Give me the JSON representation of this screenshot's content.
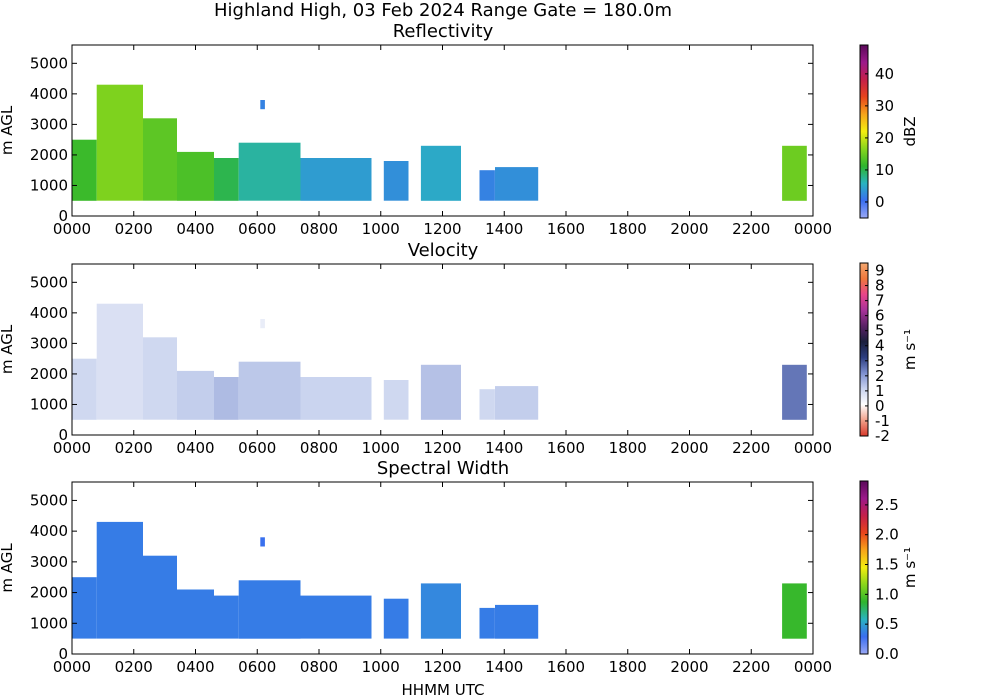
{
  "figure": {
    "title": "Highland High, 03 Feb 2024 Range Gate = 180.0m",
    "xlabel": "HHMM UTC"
  },
  "chart_data": [
    {
      "type": "heatmap",
      "title": "Reflectivity",
      "ylabel": "m AGL",
      "x_unit": "UTC hour",
      "xlim": [
        0,
        24
      ],
      "ylim": [
        0,
        5600
      ],
      "x_ticks": [
        0,
        2,
        4,
        6,
        8,
        10,
        12,
        14,
        16,
        18,
        20,
        22,
        24
      ],
      "x_tick_labels": [
        "0000",
        "0200",
        "0400",
        "0600",
        "0800",
        "1000",
        "1200",
        "1400",
        "1600",
        "1800",
        "2000",
        "2200",
        "0000"
      ],
      "y_ticks": [
        0,
        1000,
        2000,
        3000,
        4000,
        5000
      ],
      "y_tick_labels": [
        "0",
        "1000",
        "2000",
        "3000",
        "4000",
        "5000"
      ],
      "colorbar": {
        "label": "dBZ",
        "range": [
          -5,
          49
        ],
        "ticks": [
          0,
          10,
          20,
          30,
          40
        ],
        "tick_labels": [
          "0",
          "10",
          "20",
          "30",
          "40"
        ],
        "colors": [
          "#9aa8f5",
          "#3a6ef0",
          "#29b3c0",
          "#2eb52e",
          "#88d61c",
          "#f4ee10",
          "#f7a41a",
          "#e8441c",
          "#c4204a",
          "#9c1a8a",
          "#5a0a5a"
        ]
      },
      "echo_segments": [
        {
          "start": 0.0,
          "end": 0.8,
          "top": 2500,
          "value": 12
        },
        {
          "start": 0.8,
          "end": 2.3,
          "top": 4300,
          "value": 16
        },
        {
          "start": 2.3,
          "end": 3.4,
          "top": 3200,
          "value": 14
        },
        {
          "start": 3.4,
          "end": 4.6,
          "top": 2100,
          "value": 13
        },
        {
          "start": 4.6,
          "end": 5.4,
          "top": 1900,
          "value": 10
        },
        {
          "start": 5.4,
          "end": 7.4,
          "top": 2400,
          "value": 7
        },
        {
          "start": 7.4,
          "end": 9.7,
          "top": 1900,
          "value": 4
        },
        {
          "start": 10.1,
          "end": 10.9,
          "top": 1800,
          "value": 3
        },
        {
          "start": 11.3,
          "end": 12.6,
          "top": 2300,
          "value": 5
        },
        {
          "start": 13.2,
          "end": 13.7,
          "top": 1500,
          "value": 2
        },
        {
          "start": 13.7,
          "end": 15.1,
          "top": 1600,
          "value": 3
        },
        {
          "start": 23.0,
          "end": 23.8,
          "top": 2300,
          "value": 15
        }
      ],
      "small_patches": [
        {
          "start": 6.1,
          "end": 6.25,
          "bottom": 3500,
          "top": 3800,
          "value": 2
        }
      ]
    },
    {
      "type": "heatmap",
      "title": "Velocity",
      "ylabel": "m AGL",
      "x_unit": "UTC hour",
      "xlim": [
        0,
        24
      ],
      "ylim": [
        0,
        5600
      ],
      "x_ticks": [
        0,
        2,
        4,
        6,
        8,
        10,
        12,
        14,
        16,
        18,
        20,
        22,
        24
      ],
      "x_tick_labels": [
        "0000",
        "0200",
        "0400",
        "0600",
        "0800",
        "1000",
        "1200",
        "1400",
        "1600",
        "1800",
        "2000",
        "2200",
        "0000"
      ],
      "y_ticks": [
        0,
        1000,
        2000,
        3000,
        4000,
        5000
      ],
      "y_tick_labels": [
        "0",
        "1000",
        "2000",
        "3000",
        "4000",
        "5000"
      ],
      "colorbar": {
        "label": "m s⁻¹",
        "range": [
          -2,
          9.5
        ],
        "ticks": [
          -2,
          -1,
          0,
          1,
          2,
          3,
          4,
          5,
          6,
          7,
          8,
          9
        ],
        "tick_labels": [
          "-2",
          "-1",
          "0",
          "1",
          "2",
          "3",
          "4",
          "5",
          "6",
          "7",
          "8",
          "9"
        ],
        "colors": [
          "#d8392b",
          "#f0a08a",
          "#ffffff",
          "#c8d2ee",
          "#7d8fcf",
          "#2c3d80",
          "#1a1f3c",
          "#5b2266",
          "#a8339a",
          "#e8458a",
          "#f0783c",
          "#f4a870"
        ]
      },
      "echo_segments": [
        {
          "start": 0.0,
          "end": 0.8,
          "top": 2500,
          "value": 1.0
        },
        {
          "start": 0.8,
          "end": 2.3,
          "top": 4300,
          "value": 0.8
        },
        {
          "start": 2.3,
          "end": 3.4,
          "top": 3200,
          "value": 1.0
        },
        {
          "start": 3.4,
          "end": 4.6,
          "top": 2100,
          "value": 1.2
        },
        {
          "start": 4.6,
          "end": 5.4,
          "top": 1900,
          "value": 1.5
        },
        {
          "start": 5.4,
          "end": 7.4,
          "top": 2400,
          "value": 1.3
        },
        {
          "start": 7.4,
          "end": 9.7,
          "top": 1900,
          "value": 1.1
        },
        {
          "start": 10.1,
          "end": 10.9,
          "top": 1800,
          "value": 1.0
        },
        {
          "start": 11.3,
          "end": 12.6,
          "top": 2300,
          "value": 1.4
        },
        {
          "start": 13.2,
          "end": 13.7,
          "top": 1500,
          "value": 1.0
        },
        {
          "start": 13.7,
          "end": 15.1,
          "top": 1600,
          "value": 1.2
        },
        {
          "start": 23.0,
          "end": 23.8,
          "top": 2300,
          "value": 2.5
        }
      ],
      "small_patches": [
        {
          "start": 6.1,
          "end": 6.25,
          "bottom": 3500,
          "top": 3800,
          "value": 0.5
        }
      ]
    },
    {
      "type": "heatmap",
      "title": "Spectral Width",
      "ylabel": "m AGL",
      "x_unit": "UTC hour",
      "xlim": [
        0,
        24
      ],
      "ylim": [
        0,
        5600
      ],
      "x_ticks": [
        0,
        2,
        4,
        6,
        8,
        10,
        12,
        14,
        16,
        18,
        20,
        22,
        24
      ],
      "x_tick_labels": [
        "0000",
        "0200",
        "0400",
        "0600",
        "0800",
        "1000",
        "1200",
        "1400",
        "1600",
        "1800",
        "2000",
        "2200",
        "0000"
      ],
      "y_ticks": [
        0,
        1000,
        2000,
        3000,
        4000,
        5000
      ],
      "y_tick_labels": [
        "0",
        "1000",
        "2000",
        "3000",
        "4000",
        "5000"
      ],
      "colorbar": {
        "label": "m s⁻¹",
        "range": [
          0,
          2.9
        ],
        "ticks": [
          0,
          0.5,
          1.0,
          1.5,
          2.0,
          2.5
        ],
        "tick_labels": [
          "0.0",
          "0.5",
          "1.0",
          "1.5",
          "2.0",
          "2.5"
        ],
        "colors": [
          "#9aa8f5",
          "#3a6ef0",
          "#29b3c0",
          "#2eb52e",
          "#88d61c",
          "#f4ee10",
          "#f7a41a",
          "#e8441c",
          "#c4204a",
          "#9c1a8a",
          "#5a0a5a"
        ]
      },
      "echo_segments": [
        {
          "start": 0.0,
          "end": 0.8,
          "top": 2500,
          "value": 0.35
        },
        {
          "start": 0.8,
          "end": 2.3,
          "top": 4300,
          "value": 0.35
        },
        {
          "start": 2.3,
          "end": 3.4,
          "top": 3200,
          "value": 0.35
        },
        {
          "start": 3.4,
          "end": 4.6,
          "top": 2100,
          "value": 0.35
        },
        {
          "start": 4.6,
          "end": 5.4,
          "top": 1900,
          "value": 0.35
        },
        {
          "start": 5.4,
          "end": 7.4,
          "top": 2400,
          "value": 0.35
        },
        {
          "start": 7.4,
          "end": 9.7,
          "top": 1900,
          "value": 0.35
        },
        {
          "start": 10.1,
          "end": 10.9,
          "top": 1800,
          "value": 0.35
        },
        {
          "start": 11.3,
          "end": 12.6,
          "top": 2300,
          "value": 0.4
        },
        {
          "start": 13.2,
          "end": 13.7,
          "top": 1500,
          "value": 0.35
        },
        {
          "start": 13.7,
          "end": 15.1,
          "top": 1600,
          "value": 0.35
        },
        {
          "start": 23.0,
          "end": 23.8,
          "top": 2300,
          "value": 0.9
        }
      ],
      "small_patches": [
        {
          "start": 6.1,
          "end": 6.25,
          "bottom": 3500,
          "top": 3800,
          "value": 0.3
        }
      ]
    }
  ]
}
